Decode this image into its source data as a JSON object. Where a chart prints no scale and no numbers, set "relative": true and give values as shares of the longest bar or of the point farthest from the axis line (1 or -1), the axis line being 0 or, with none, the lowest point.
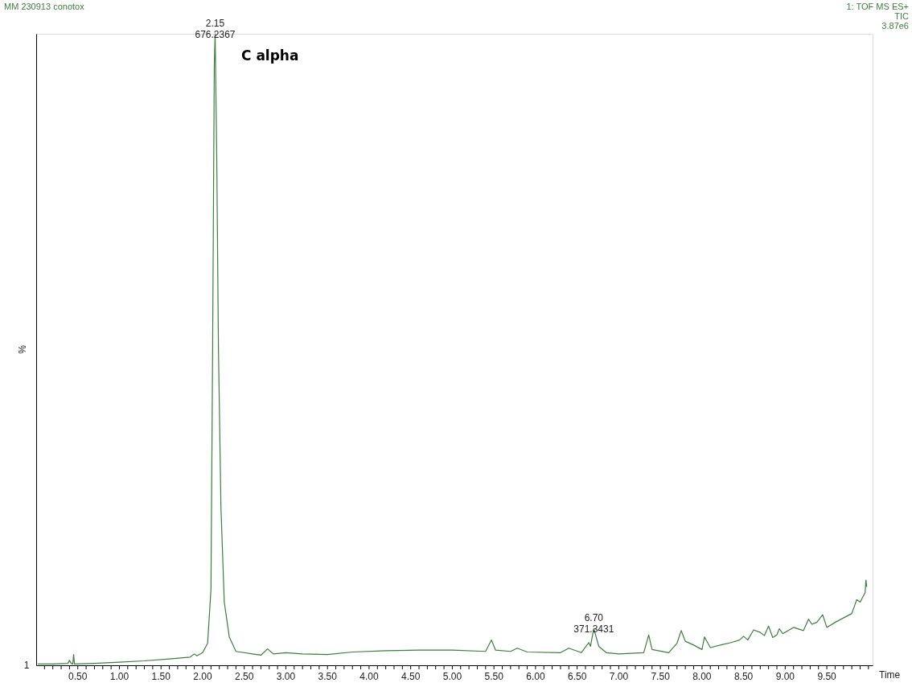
{
  "chart_data": {
    "type": "line",
    "relative": true,
    "title": "MM 230913 conotox",
    "xlabel": "Time",
    "ylabel": "%",
    "annotations": [
      "C alpha",
      "1: TOF MS ES+",
      "TIC",
      "3.87e6",
      "1",
      {
        "text": "2.15\n676.2367",
        "x": 2.15,
        "y": 1
      },
      {
        "text": "6.70\n371.3431",
        "x": 6.7,
        "y": 0.058
      }
    ],
    "xlim": [
      0,
      10.05
    ],
    "xticks": [
      {
        "value": 0.1,
        "label": null
      },
      {
        "value": 0.2,
        "label": null
      },
      {
        "value": 0.3,
        "label": null
      },
      {
        "value": 0.4,
        "label": null
      },
      {
        "value": 0.5,
        "label": "0.50"
      },
      {
        "value": 0.6,
        "label": null
      },
      {
        "value": 0.7,
        "label": null
      },
      {
        "value": 0.8,
        "label": null
      },
      {
        "value": 0.9,
        "label": null
      },
      {
        "value": 1.0,
        "label": "1.00"
      },
      {
        "value": 1.1,
        "label": null
      },
      {
        "value": 1.2,
        "label": null
      },
      {
        "value": 1.3,
        "label": null
      },
      {
        "value": 1.4,
        "label": null
      },
      {
        "value": 1.5,
        "label": "1.50"
      },
      {
        "value": 1.6,
        "label": null
      },
      {
        "value": 1.7,
        "label": null
      },
      {
        "value": 1.8,
        "label": null
      },
      {
        "value": 1.9,
        "label": null
      },
      {
        "value": 2.0,
        "label": "2.00"
      },
      {
        "value": 2.1,
        "label": null
      },
      {
        "value": 2.2,
        "label": null
      },
      {
        "value": 2.3,
        "label": null
      },
      {
        "value": 2.4,
        "label": null
      },
      {
        "value": 2.5,
        "label": "2.50"
      },
      {
        "value": 2.6,
        "label": null
      },
      {
        "value": 2.7,
        "label": null
      },
      {
        "value": 2.8,
        "label": null
      },
      {
        "value": 2.9,
        "label": null
      },
      {
        "value": 3.0,
        "label": "3.00"
      },
      {
        "value": 3.1,
        "label": null
      },
      {
        "value": 3.2,
        "label": null
      },
      {
        "value": 3.3,
        "label": null
      },
      {
        "value": 3.4,
        "label": null
      },
      {
        "value": 3.5,
        "label": "3.50"
      },
      {
        "value": 3.6,
        "label": null
      },
      {
        "value": 3.7,
        "label": null
      },
      {
        "value": 3.8,
        "label": null
      },
      {
        "value": 3.9,
        "label": null
      },
      {
        "value": 4.0,
        "label": "4.00"
      },
      {
        "value": 4.1,
        "label": null
      },
      {
        "value": 4.2,
        "label": null
      },
      {
        "value": 4.3,
        "label": null
      },
      {
        "value": 4.4,
        "label": null
      },
      {
        "value": 4.5,
        "label": "4.50"
      },
      {
        "value": 4.6,
        "label": null
      },
      {
        "value": 4.7,
        "label": null
      },
      {
        "value": 4.8,
        "label": null
      },
      {
        "value": 4.9,
        "label": null
      },
      {
        "value": 5.0,
        "label": "5.00"
      },
      {
        "value": 5.1,
        "label": null
      },
      {
        "value": 5.2,
        "label": null
      },
      {
        "value": 5.3,
        "label": null
      },
      {
        "value": 5.4,
        "label": null
      },
      {
        "value": 5.5,
        "label": "5.50"
      },
      {
        "value": 5.6,
        "label": null
      },
      {
        "value": 5.7,
        "label": null
      },
      {
        "value": 5.8,
        "label": null
      },
      {
        "value": 5.9,
        "label": null
      },
      {
        "value": 6.0,
        "label": "6.00"
      },
      {
        "value": 6.1,
        "label": null
      },
      {
        "value": 6.2,
        "label": null
      },
      {
        "value": 6.3,
        "label": null
      },
      {
        "value": 6.4,
        "label": null
      },
      {
        "value": 6.5,
        "label": "6.50"
      },
      {
        "value": 6.6,
        "label": null
      },
      {
        "value": 6.7,
        "label": null
      },
      {
        "value": 6.8,
        "label": null
      },
      {
        "value": 6.9,
        "label": null
      },
      {
        "value": 7.0,
        "label": "7.00"
      },
      {
        "value": 7.1,
        "label": null
      },
      {
        "value": 7.2,
        "label": null
      },
      {
        "value": 7.3,
        "label": null
      },
      {
        "value": 7.4,
        "label": null
      },
      {
        "value": 7.5,
        "label": "7.50"
      },
      {
        "value": 7.6,
        "label": null
      },
      {
        "value": 7.7,
        "label": null
      },
      {
        "value": 7.8,
        "label": null
      },
      {
        "value": 7.9,
        "label": null
      },
      {
        "value": 8.0,
        "label": "8.00"
      },
      {
        "value": 8.1,
        "label": null
      },
      {
        "value": 8.2,
        "label": null
      },
      {
        "value": 8.3,
        "label": null
      },
      {
        "value": 8.4,
        "label": null
      },
      {
        "value": 8.5,
        "label": "8.50"
      },
      {
        "value": 8.6,
        "label": null
      },
      {
        "value": 8.7,
        "label": null
      },
      {
        "value": 8.8,
        "label": null
      },
      {
        "value": 8.9,
        "label": null
      },
      {
        "value": 9.0,
        "label": "9.00"
      },
      {
        "value": 9.1,
        "label": null
      },
      {
        "value": 9.2,
        "label": null
      },
      {
        "value": 9.3,
        "label": null
      },
      {
        "value": 9.4,
        "label": null
      },
      {
        "value": 9.5,
        "label": "9.50"
      },
      {
        "value": 9.6,
        "label": null
      },
      {
        "value": 9.7,
        "label": null
      },
      {
        "value": 9.8,
        "label": null
      },
      {
        "value": 9.9,
        "label": null
      },
      {
        "value": 10.0,
        "label": null
      }
    ],
    "grid": false,
    "series": [
      {
        "color": "#3d7f3d",
        "x": [
          0.02,
          0.2,
          0.38,
          0.4,
          0.42,
          0.44,
          0.45,
          0.46,
          0.7,
          1.0,
          1.3,
          1.6,
          1.85,
          1.9,
          1.93,
          2.0,
          2.06,
          2.1,
          2.12,
          2.14,
          2.15,
          2.17,
          2.19,
          2.22,
          2.26,
          2.32,
          2.4,
          2.6,
          2.7,
          2.78,
          2.85,
          3.0,
          3.2,
          3.5,
          3.8,
          4.2,
          4.6,
          5.0,
          5.4,
          5.47,
          5.52,
          5.7,
          5.78,
          5.9,
          6.3,
          6.4,
          6.55,
          6.64,
          6.66,
          6.7,
          6.76,
          6.85,
          7.0,
          7.3,
          7.36,
          7.4,
          7.6,
          7.7,
          7.75,
          7.8,
          7.9,
          8.0,
          8.03,
          8.1,
          8.25,
          8.35,
          8.45,
          8.5,
          8.55,
          8.62,
          8.7,
          8.75,
          8.8,
          8.85,
          8.9,
          8.93,
          8.97,
          9.1,
          9.22,
          9.28,
          9.32,
          9.38,
          9.45,
          9.5,
          9.6,
          9.8,
          9.86,
          9.9,
          9.96,
          9.97,
          9.98
        ],
        "values": [
          0.002,
          0.002,
          0.003,
          0.008,
          0.003,
          0.002,
          0.017,
          0.002,
          0.003,
          0.005,
          0.007,
          0.01,
          0.013,
          0.018,
          0.015,
          0.02,
          0.035,
          0.12,
          0.5,
          0.95,
          1.0,
          0.8,
          0.5,
          0.25,
          0.1,
          0.045,
          0.022,
          0.018,
          0.016,
          0.026,
          0.018,
          0.02,
          0.018,
          0.017,
          0.021,
          0.023,
          0.024,
          0.024,
          0.022,
          0.04,
          0.024,
          0.022,
          0.027,
          0.021,
          0.02,
          0.027,
          0.02,
          0.036,
          0.03,
          0.058,
          0.03,
          0.02,
          0.018,
          0.02,
          0.048,
          0.025,
          0.02,
          0.035,
          0.055,
          0.038,
          0.032,
          0.025,
          0.045,
          0.028,
          0.033,
          0.036,
          0.04,
          0.046,
          0.04,
          0.056,
          0.052,
          0.047,
          0.062,
          0.044,
          0.048,
          0.058,
          0.05,
          0.06,
          0.055,
          0.073,
          0.065,
          0.068,
          0.08,
          0.06,
          0.068,
          0.082,
          0.104,
          0.1,
          0.115,
          0.135,
          0.124
        ]
      }
    ]
  }
}
